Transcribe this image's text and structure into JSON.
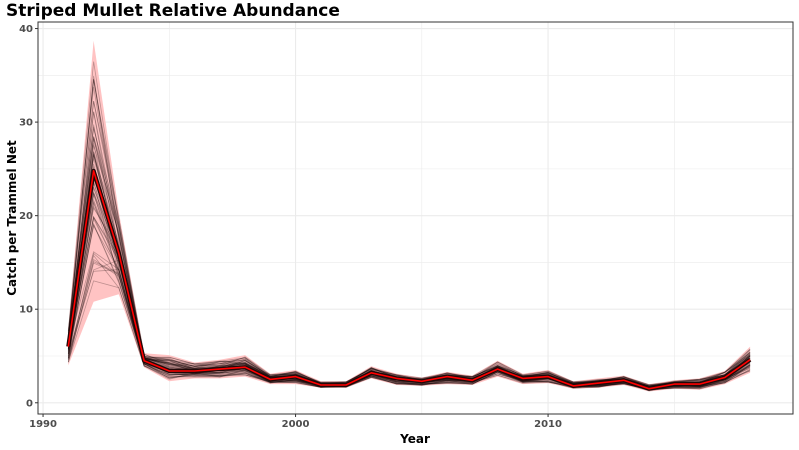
{
  "chart_data": {
    "type": "line",
    "title": "Striped Mullet Relative Abundance",
    "xlabel": "Year",
    "ylabel": "Catch per Trammel Net",
    "xlim": [
      1989.8,
      2019.7
    ],
    "ylim": [
      -1.2,
      40.7
    ],
    "x_ticks": [
      1990,
      2000,
      2010
    ],
    "y_ticks": [
      0,
      10,
      20,
      30,
      40
    ],
    "grid": true,
    "legend": "none",
    "colors": {
      "mean_line": "#ff0000",
      "ribbon": "#ffc0c0",
      "iterations": "#1a0a0a",
      "grid": "#ebebeb",
      "panel_border": "#333333"
    },
    "x": [
      1991,
      1992,
      1993,
      1994,
      1995,
      1996,
      1997,
      1998,
      1999,
      2000,
      2001,
      2002,
      2003,
      2004,
      2005,
      2006,
      2007,
      2008,
      2009,
      2010,
      2011,
      2012,
      2013,
      2014,
      2015,
      2016,
      2017,
      2018
    ],
    "series": [
      {
        "values": [
          6.0,
          24.8,
          16.0,
          4.5,
          3.4,
          3.4,
          3.6,
          3.8,
          2.5,
          2.8,
          1.9,
          1.9,
          3.2,
          2.6,
          2.3,
          2.8,
          2.4,
          3.6,
          2.6,
          2.8,
          1.8,
          2.1,
          2.4,
          1.5,
          2.0,
          2.0,
          2.7,
          4.6
        ],
        "lower": [
          4.0,
          10.8,
          11.6,
          3.8,
          2.3,
          2.6,
          2.6,
          2.8,
          2.0,
          2.0,
          1.6,
          1.6,
          2.6,
          1.9,
          1.8,
          2.0,
          1.9,
          2.8,
          2.0,
          2.1,
          1.5,
          1.6,
          1.9,
          1.2,
          1.5,
          1.4,
          2.0,
          3.2
        ],
        "upper": [
          8.0,
          38.7,
          20.4,
          5.3,
          5.1,
          4.3,
          4.6,
          5.1,
          3.1,
          3.5,
          2.3,
          2.3,
          3.9,
          3.1,
          2.7,
          3.3,
          2.9,
          4.5,
          3.1,
          3.5,
          2.3,
          2.6,
          2.9,
          2.0,
          2.4,
          2.6,
          3.4,
          6.0
        ]
      }
    ]
  }
}
